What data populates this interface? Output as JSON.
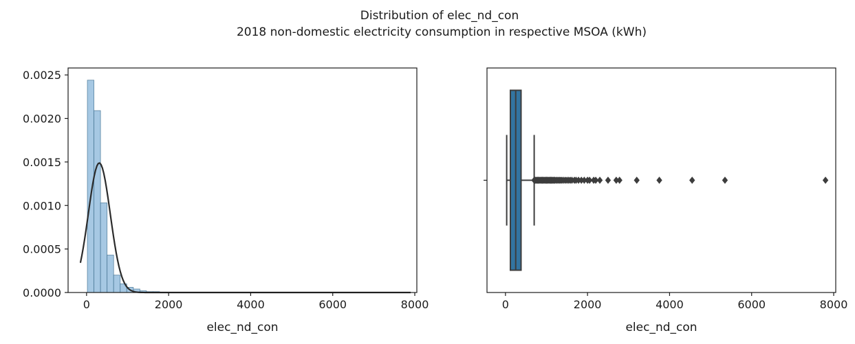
{
  "figure": {
    "title": "Distribution of elec_nd_con",
    "subtitle": "2018 non-domestic electricity consumption in respective MSOA (kWh)"
  },
  "chart_data": [
    {
      "type": "bar",
      "kind": "histogram with density curve",
      "xlabel": "elec_nd_con",
      "ylabel": "",
      "xlim": [
        -450,
        8050
      ],
      "ylim": [
        0,
        0.00258
      ],
      "xticks": [
        0,
        2000,
        4000,
        6000,
        8000
      ],
      "yticks": [
        0.0,
        0.0005,
        0.001,
        0.0015,
        0.002,
        0.0025
      ],
      "ytick_labels": [
        "0.0000",
        "0.0005",
        "0.0010",
        "0.0015",
        "0.0020",
        "0.0025"
      ],
      "bin_width": 160,
      "bins_start": 20,
      "values": [
        0.00244,
        0.00209,
        0.00103,
        0.00043,
        0.0002,
        0.0001,
        6e-05,
        4e-05,
        2e-05,
        1e-05,
        1e-05,
        5e-06,
        4e-06,
        3e-06,
        2e-06,
        2e-06,
        2e-06,
        1e-06,
        1e-06,
        1e-06,
        1e-06,
        1e-06,
        1e-06,
        5e-07,
        5e-07,
        5e-07,
        5e-07,
        5e-07,
        5e-07,
        5e-07,
        5e-07,
        5e-07,
        3e-07,
        3e-07,
        3e-07,
        3e-07,
        3e-07,
        3e-07,
        3e-07,
        3e-07,
        3e-07,
        3e-07,
        3e-07,
        3e-07,
        3e-07,
        3e-07,
        3e-07,
        3e-07,
        3e-07
      ],
      "bar_color": "#a6c8e3",
      "bar_edge_color": "#3e6e8f",
      "curve": {
        "type": "normal",
        "mean": 310,
        "std": 268,
        "x_from": -150,
        "x_to": 7900,
        "color": "#2b2b2b"
      },
      "grid": false
    },
    {
      "type": "box",
      "xlabel": "elec_nd_con",
      "ylabel": "",
      "xlim": [
        -450,
        8050
      ],
      "xticks": [
        0,
        2000,
        4000,
        6000,
        8000
      ],
      "whisker_low": 30,
      "q1": 120,
      "median": 250,
      "q3": 380,
      "whisker_high": 700,
      "outliers": [
        700,
        720,
        740,
        760,
        780,
        800,
        820,
        840,
        860,
        880,
        900,
        920,
        940,
        960,
        980,
        1000,
        1020,
        1040,
        1060,
        1080,
        1100,
        1120,
        1140,
        1160,
        1180,
        1200,
        1230,
        1260,
        1290,
        1320,
        1350,
        1380,
        1420,
        1460,
        1500,
        1540,
        1580,
        1620,
        1680,
        1720,
        1780,
        1850,
        1920,
        2000,
        2050,
        2150,
        2200,
        2300,
        2500,
        2700,
        2780,
        3200,
        3750,
        4550,
        5350,
        7800
      ],
      "box_color": "#3274a1",
      "line_color": "#3d3d3d",
      "grid": false
    }
  ]
}
